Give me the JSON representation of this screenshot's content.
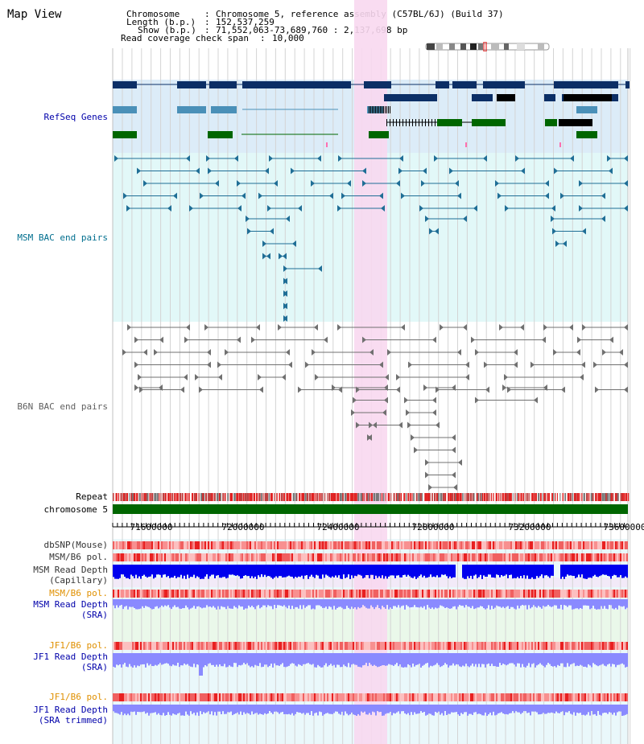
{
  "app": {
    "title": "Map View"
  },
  "info": {
    "chromosome_key": "Chromosome",
    "chromosome_val": "Chromosome 5, reference assembly (C57BL/6J) (Build 37)",
    "length_key": "Length (b.p.)",
    "length_val": "152,537,259",
    "show_key": "Show (b.p.)",
    "show_val": "71,552,063-73,689,760 : 2,137,698 bp",
    "coverage_key": "Read coverage check span",
    "coverage_val": "10,000"
  },
  "tracks": {
    "refseq": "RefSeq Genes",
    "msm_bac": "MSM BAC end pairs",
    "b6n_bac": "B6N BAC end pairs",
    "repeat": "Repeat",
    "chromosome": "chromosome 5",
    "dbsnp": "dbSNP(Mouse)",
    "msm_b6_pol": "MSM/B6 pol.",
    "msm_depth_cap_1": "MSM Read Depth",
    "msm_depth_cap_2": "(Capillary)",
    "msm_b6_pol_2": "MSM/B6 pol.",
    "msm_depth_sra_1": "MSM Read Depth",
    "msm_depth_sra_2": "(SRA)",
    "jf1_b6_pol": "JF1/B6 pol.",
    "jf1_depth_sra_1": "JF1 Read Depth",
    "jf1_depth_sra_2": "(SRA)",
    "jf1_b6_pol_2": "JF1/B6 pol.",
    "jf1_depth_trim_1": "JF1 Read Depth",
    "jf1_depth_trim_2": "(SRA trimmed)"
  },
  "axis": {
    "ticks": [
      "71600000",
      "72000000",
      "72400000",
      "72800000",
      "73200000",
      "73600000"
    ]
  },
  "colors": {
    "refseq_bg": "#dcecf8",
    "msm_bg": "#e2f8f8",
    "highlight": "#f8d8f0",
    "gene_dark": "#0c2f66",
    "gene_mid": "#4a90b8",
    "gene_green": "#006600",
    "msm_pair": "#1f6e96",
    "b6n_pair": "#707070",
    "chromosome": "#006600",
    "depth_blue": "#0000ee",
    "depth_light": "#8a8aff",
    "label_blue": "#0000aa",
    "label_orange": "#e09000",
    "label_teal": "#006e8e"
  }
}
